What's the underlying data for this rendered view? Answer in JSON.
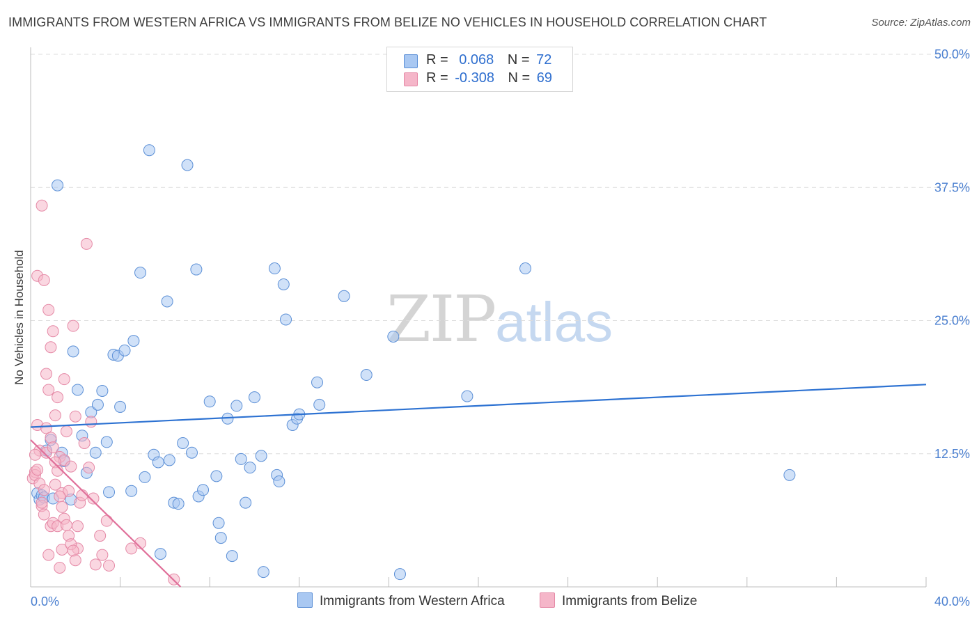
{
  "header": {
    "title": "IMMIGRANTS FROM WESTERN AFRICA VS IMMIGRANTS FROM BELIZE NO VEHICLES IN HOUSEHOLD CORRELATION CHART",
    "source": "Source: ZipAtlas.com"
  },
  "watermark": {
    "zip": "ZIP",
    "atlas": "atlas"
  },
  "legend": {
    "rows": [
      {
        "r_label": "R =",
        "r_value": "0.068",
        "n_label": "N =",
        "n_value": "72",
        "color": "#a9c8f2"
      },
      {
        "r_label": "R =",
        "r_value": "-0.308",
        "n_label": "N =",
        "n_value": "69",
        "color": "#f5b6c9"
      }
    ]
  },
  "bottom_legend": {
    "series1": "Immigrants from Western Africa",
    "series2": "Immigrants from Belize"
  },
  "colors": {
    "blue_fill": "#a9c8f2",
    "blue_stroke": "#5b8fd6",
    "blue_line": "#2d72d2",
    "pink_fill": "#f5b6c9",
    "pink_stroke": "#e589a6",
    "pink_line": "#e0709a",
    "tick_text": "#4a7fd0",
    "grid": "#dcdcdc"
  },
  "chart_data": {
    "type": "scatter",
    "title": "IMMIGRANTS FROM WESTERN AFRICA VS IMMIGRANTS FROM BELIZE NO VEHICLES IN HOUSEHOLD CORRELATION CHART",
    "xlabel": "",
    "ylabel": "No Vehicles in Household",
    "xlim": [
      0,
      40
    ],
    "ylim": [
      0,
      50
    ],
    "x_tick_labels": [
      "0.0%",
      "40.0%"
    ],
    "y_ticks": [
      12.5,
      25.0,
      37.5,
      50.0
    ],
    "y_tick_labels": [
      "12.5%",
      "25.0%",
      "37.5%",
      "50.0%"
    ],
    "grid": true,
    "legend_position": "top-center",
    "series": [
      {
        "name": "Immigrants from Western Africa",
        "points": [
          [
            0.3,
            8.8
          ],
          [
            0.4,
            8.2
          ],
          [
            0.5,
            8.6
          ],
          [
            0.6,
            8.4
          ],
          [
            0.7,
            12.8
          ],
          [
            0.9,
            13.8
          ],
          [
            1.0,
            8.3
          ],
          [
            1.2,
            37.7
          ],
          [
            1.4,
            12.6
          ],
          [
            1.5,
            11.8
          ],
          [
            1.8,
            8.2
          ],
          [
            1.9,
            22.1
          ],
          [
            2.1,
            18.5
          ],
          [
            2.3,
            14.2
          ],
          [
            2.5,
            10.7
          ],
          [
            2.7,
            16.4
          ],
          [
            2.9,
            12.6
          ],
          [
            3.0,
            17.1
          ],
          [
            3.2,
            18.4
          ],
          [
            3.4,
            13.6
          ],
          [
            3.5,
            8.9
          ],
          [
            3.7,
            21.8
          ],
          [
            3.9,
            21.7
          ],
          [
            4.0,
            16.9
          ],
          [
            4.2,
            22.2
          ],
          [
            4.5,
            9.0
          ],
          [
            4.6,
            23.1
          ],
          [
            4.9,
            29.5
          ],
          [
            5.1,
            10.3
          ],
          [
            5.3,
            41.0
          ],
          [
            5.5,
            12.4
          ],
          [
            5.7,
            11.7
          ],
          [
            5.8,
            3.1
          ],
          [
            6.1,
            26.8
          ],
          [
            6.2,
            11.9
          ],
          [
            6.4,
            7.9
          ],
          [
            6.6,
            7.8
          ],
          [
            6.8,
            13.5
          ],
          [
            7.0,
            39.6
          ],
          [
            7.2,
            12.6
          ],
          [
            7.4,
            29.8
          ],
          [
            7.5,
            8.5
          ],
          [
            7.7,
            9.1
          ],
          [
            8.0,
            17.4
          ],
          [
            8.3,
            10.4
          ],
          [
            8.4,
            6.0
          ],
          [
            8.5,
            4.6
          ],
          [
            8.8,
            15.8
          ],
          [
            9.0,
            2.9
          ],
          [
            9.2,
            17.0
          ],
          [
            9.4,
            12.0
          ],
          [
            9.6,
            7.9
          ],
          [
            9.8,
            11.2
          ],
          [
            10.0,
            17.8
          ],
          [
            10.3,
            12.3
          ],
          [
            10.4,
            1.4
          ],
          [
            10.9,
            29.9
          ],
          [
            11.0,
            10.5
          ],
          [
            11.1,
            9.9
          ],
          [
            11.3,
            28.4
          ],
          [
            11.4,
            25.1
          ],
          [
            11.7,
            15.2
          ],
          [
            11.9,
            15.8
          ],
          [
            12.0,
            16.2
          ],
          [
            12.8,
            19.2
          ],
          [
            12.9,
            17.1
          ],
          [
            14.0,
            27.3
          ],
          [
            15.0,
            19.9
          ],
          [
            16.2,
            23.5
          ],
          [
            16.5,
            1.2
          ],
          [
            19.5,
            17.9
          ],
          [
            22.1,
            29.9
          ],
          [
            33.9,
            10.5
          ]
        ]
      },
      {
        "name": "Immigrants from Belize",
        "points": [
          [
            0.1,
            10.2
          ],
          [
            0.2,
            10.8
          ],
          [
            0.2,
            10.5
          ],
          [
            0.3,
            29.2
          ],
          [
            0.3,
            15.2
          ],
          [
            0.4,
            12.8
          ],
          [
            0.4,
            9.7
          ],
          [
            0.5,
            7.6
          ],
          [
            0.5,
            7.9
          ],
          [
            0.6,
            9.1
          ],
          [
            0.6,
            6.8
          ],
          [
            0.7,
            14.9
          ],
          [
            0.7,
            12.6
          ],
          [
            0.8,
            3.0
          ],
          [
            0.8,
            26.0
          ],
          [
            0.9,
            22.5
          ],
          [
            0.9,
            5.7
          ],
          [
            1.0,
            24.0
          ],
          [
            1.0,
            6.0
          ],
          [
            1.1,
            9.6
          ],
          [
            1.1,
            16.1
          ],
          [
            1.2,
            17.8
          ],
          [
            1.2,
            5.7
          ],
          [
            1.3,
            12.2
          ],
          [
            1.4,
            3.5
          ],
          [
            1.4,
            8.8
          ],
          [
            1.5,
            11.9
          ],
          [
            1.5,
            19.5
          ],
          [
            1.6,
            14.6
          ],
          [
            1.7,
            9.0
          ],
          [
            1.8,
            11.3
          ],
          [
            1.9,
            24.5
          ],
          [
            2.0,
            16.0
          ],
          [
            2.1,
            5.7
          ],
          [
            2.1,
            3.6
          ],
          [
            2.2,
            7.9
          ],
          [
            2.3,
            8.6
          ],
          [
            2.4,
            13.5
          ],
          [
            2.5,
            32.2
          ],
          [
            2.6,
            11.2
          ],
          [
            2.7,
            15.5
          ],
          [
            2.8,
            8.3
          ],
          [
            2.9,
            2.1
          ],
          [
            3.1,
            4.8
          ],
          [
            3.2,
            3.0
          ],
          [
            3.4,
            6.2
          ],
          [
            3.5,
            2.0
          ],
          [
            0.5,
            35.8
          ],
          [
            0.6,
            28.8
          ],
          [
            0.7,
            20.0
          ],
          [
            0.8,
            18.5
          ],
          [
            0.9,
            14.0
          ],
          [
            1.0,
            13.1
          ],
          [
            1.1,
            11.7
          ],
          [
            1.2,
            10.9
          ],
          [
            1.3,
            8.5
          ],
          [
            1.4,
            7.5
          ],
          [
            1.5,
            6.4
          ],
          [
            1.6,
            5.8
          ],
          [
            1.7,
            4.8
          ],
          [
            1.8,
            4.0
          ],
          [
            1.9,
            3.4
          ],
          [
            2.0,
            2.5
          ],
          [
            4.5,
            3.6
          ],
          [
            4.9,
            4.1
          ],
          [
            6.4,
            0.7
          ],
          [
            0.2,
            12.4
          ],
          [
            0.3,
            11.0
          ],
          [
            1.3,
            1.8
          ]
        ]
      }
    ],
    "trend_lines": [
      {
        "name": "Immigrants from Western Africa",
        "x": [
          0,
          40
        ],
        "y": [
          15.0,
          19.0
        ]
      },
      {
        "name": "Immigrants from Belize",
        "x": [
          0,
          6.7
        ],
        "y": [
          13.8,
          0.0
        ]
      }
    ]
  }
}
